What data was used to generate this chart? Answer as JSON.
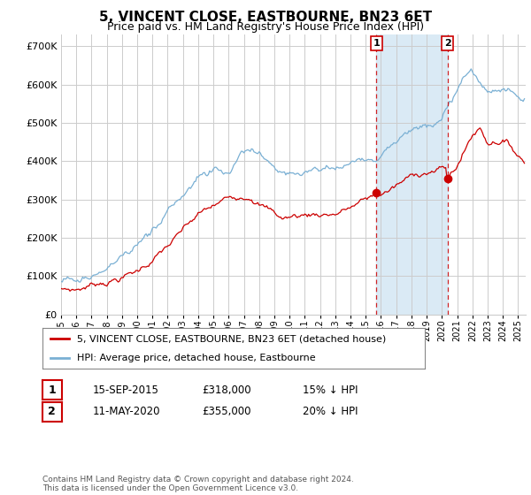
{
  "title": "5, VINCENT CLOSE, EASTBOURNE, BN23 6ET",
  "subtitle": "Price paid vs. HM Land Registry's House Price Index (HPI)",
  "title_fontsize": 11,
  "subtitle_fontsize": 9,
  "ylabel_ticks": [
    "£0",
    "£100K",
    "£200K",
    "£300K",
    "£400K",
    "£500K",
    "£600K",
    "£700K"
  ],
  "ytick_vals": [
    0,
    100000,
    200000,
    300000,
    400000,
    500000,
    600000,
    700000
  ],
  "ylim": [
    0,
    730000
  ],
  "xlim_start": 1995.0,
  "xlim_end": 2025.5,
  "hpi_color": "#7ab0d4",
  "price_color": "#cc0000",
  "sale1_date": 2015.71,
  "sale1_price": 318000,
  "sale2_date": 2020.37,
  "sale2_price": 355000,
  "shade_color": "#daeaf5",
  "grid_color": "#cccccc",
  "background_color": "#ffffff",
  "legend_label_red": "5, VINCENT CLOSE, EASTBOURNE, BN23 6ET (detached house)",
  "legend_label_blue": "HPI: Average price, detached house, Eastbourne",
  "annotation1_date_str": "15-SEP-2015",
  "annotation1_price_str": "£318,000",
  "annotation1_hpi_str": "15% ↓ HPI",
  "annotation2_date_str": "11-MAY-2020",
  "annotation2_price_str": "£355,000",
  "annotation2_hpi_str": "20% ↓ HPI",
  "footer": "Contains HM Land Registry data © Crown copyright and database right 2024.\nThis data is licensed under the Open Government Licence v3.0."
}
